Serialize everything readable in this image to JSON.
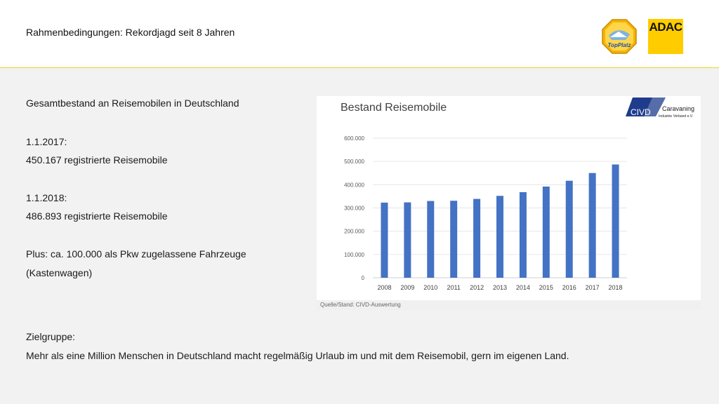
{
  "header": {
    "title": "Rahmenbedingungen: Rekordjagd seit 8 Jahren",
    "logo_topplatz_text": "TopPlatz",
    "logo_adac_text": "ADAC"
  },
  "content": {
    "heading": "Gesamtbestand an Reisemobilen in Deutschland",
    "date_2017": "1.1.2017:",
    "value_2017": "450.167 registrierte Reisemobile",
    "date_2018": "1.1.2018:",
    "value_2018": "486.893 registrierte Reisemobile",
    "plus_line1": "Plus: ca. 100.000 als Pkw zugelassene Fahrzeuge",
    "plus_line2": "(Kastenwagen)",
    "target_label": "Zielgruppe:",
    "target_text": "Mehr als eine Million Menschen in Deutschland macht regelmäßig Urlaub im und mit dem Reisemobil, gern im eigenen Land."
  },
  "chart_logo": {
    "civd_text": "CIVD",
    "caravaning_text": "Caravaning",
    "verband_text": "Industrie Verband e.V."
  },
  "source": "Quelle/Stand: CIVD-Auswertung",
  "colors": {
    "bar": "#4472c4",
    "accent_yellow": "#ffcc00",
    "civd_blue": "#1f3c8c"
  },
  "chart_data": {
    "type": "bar",
    "title": "Bestand Reisemobile",
    "categories": [
      "2008",
      "2009",
      "2010",
      "2011",
      "2012",
      "2013",
      "2014",
      "2015",
      "2016",
      "2017",
      "2018"
    ],
    "values": [
      323000,
      324000,
      330000,
      331000,
      339000,
      352000,
      368000,
      392000,
      417000,
      450167,
      486893
    ],
    "ylim": [
      0,
      600000
    ],
    "yticks": [
      "0",
      "100.000",
      "200.000",
      "300.000",
      "400.000",
      "500.000",
      "600.000"
    ],
    "grid": true,
    "legend": "none"
  }
}
